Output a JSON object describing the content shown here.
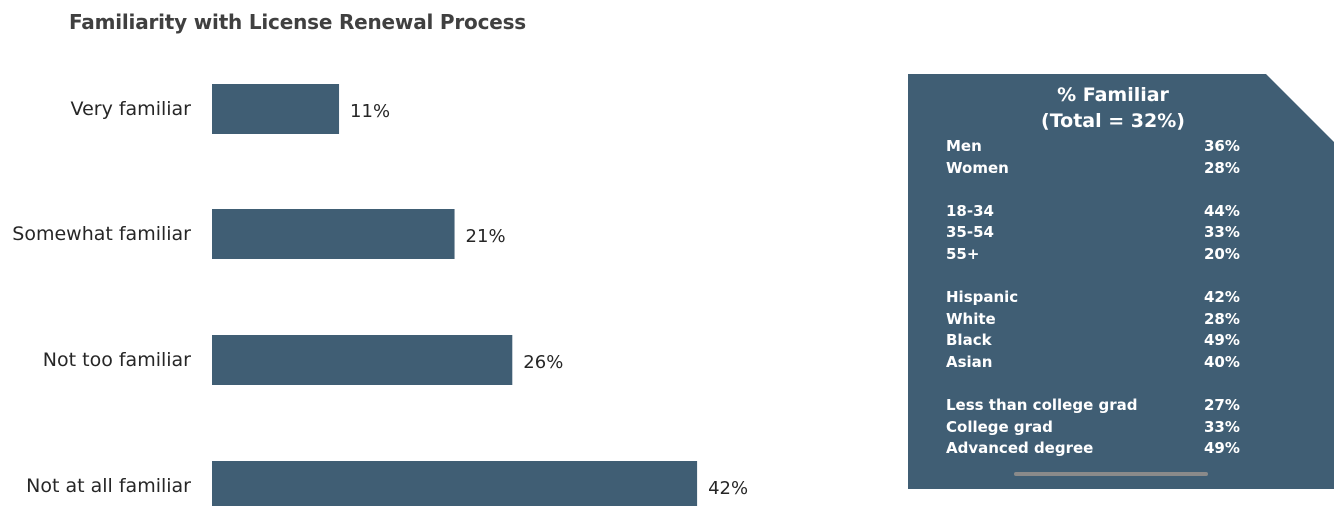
{
  "chart_data": {
    "type": "bar",
    "orientation": "horizontal",
    "title": "Familiarity with License Renewal Process",
    "categories": [
      "Very familiar",
      "Somewhat familiar",
      "Not too familiar",
      "Not at all familiar"
    ],
    "values": [
      11,
      21,
      26,
      42
    ],
    "value_labels": [
      "11%",
      "21%",
      "26%",
      "42%"
    ],
    "bar_color": "#405e74",
    "grid": false
  },
  "panel": {
    "title_line1": "% Familiar",
    "title_line2": "(Total = 32%)",
    "background": "#405e74",
    "groups": [
      [
        {
          "label": "Men",
          "value": "36%"
        },
        {
          "label": "Women",
          "value": "28%"
        }
      ],
      [
        {
          "label": "18-34",
          "value": "44%"
        },
        {
          "label": "35-54",
          "value": "33%"
        },
        {
          "label": "55+",
          "value": "20%"
        }
      ],
      [
        {
          "label": "Hispanic",
          "value": "42%"
        },
        {
          "label": "White",
          "value": "28%"
        },
        {
          "label": "Black",
          "value": "49%"
        },
        {
          "label": "Asian",
          "value": "40%"
        }
      ],
      [
        {
          "label": "Less than college grad",
          "value": "27%"
        },
        {
          "label": "College grad",
          "value": "33%"
        },
        {
          "label": "Advanced degree",
          "value": "49%"
        }
      ]
    ]
  }
}
